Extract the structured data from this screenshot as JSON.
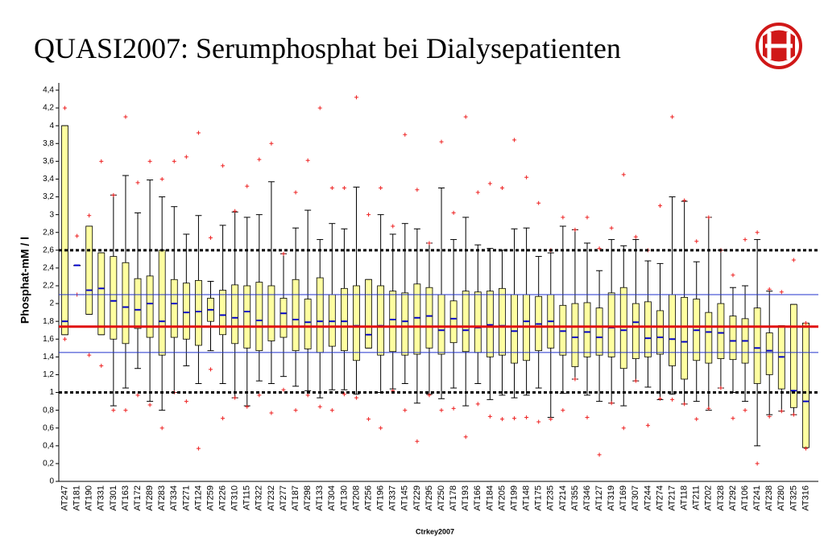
{
  "chart_data": {
    "type": "box",
    "title": "QUASI2007: Serumphosphat bei Dialysepatienten",
    "y_label": "Phosphat-mM / l",
    "x_label": "Ctrkey2007",
    "categories": [
      "AT247",
      "AT181",
      "AT190",
      "AT331",
      "AT301",
      "AT163",
      "AT172",
      "AT289",
      "AT283",
      "AT334",
      "AT271",
      "AT124",
      "AT259",
      "AT226",
      "AT310",
      "AT115",
      "AT322",
      "AT232",
      "AT277",
      "AT187",
      "AT298",
      "AT133",
      "AT304",
      "AT130",
      "AT208",
      "AT256",
      "AT196",
      "AT337",
      "AT145",
      "AT229",
      "AT295",
      "AT250",
      "AT178",
      "AT193",
      "AT166",
      "AT184",
      "AT205",
      "AT199",
      "AT148",
      "AT175",
      "AT235",
      "AT214",
      "AT355",
      "AT346",
      "AT127",
      "AT319",
      "AT169",
      "AT307",
      "AT244",
      "AT274",
      "AT217",
      "AT118",
      "AT211",
      "AT202",
      "AT328",
      "AT292",
      "AT106",
      "AT241",
      "AT238",
      "AT280",
      "AT325",
      "AT316"
    ],
    "whisker_low": [
      1.65,
      2.43,
      1.88,
      1.65,
      0.85,
      1.05,
      1.27,
      0.9,
      0.8,
      1.0,
      1.3,
      1.1,
      1.47,
      1.1,
      0.94,
      0.85,
      1.13,
      1.1,
      1.18,
      1.07,
      1.02,
      0.94,
      1.03,
      1.03,
      0.98,
      1.5,
      1.0,
      1.04,
      1.1,
      0.88,
      0.98,
      0.93,
      1.05,
      0.85,
      1.1,
      0.92,
      0.97,
      0.94,
      0.97,
      1.05,
      0.72,
      0.99,
      1.15,
      0.97,
      0.9,
      0.88,
      0.85,
      1.13,
      1.06,
      0.92,
      0.98,
      0.87,
      0.9,
      0.8,
      1.05,
      1.0,
      0.9,
      0.4,
      0.75,
      0.79,
      0.75,
      0.38
    ],
    "q1": [
      1.65,
      2.43,
      1.88,
      1.65,
      1.6,
      1.55,
      1.72,
      1.62,
      1.42,
      1.62,
      1.6,
      1.53,
      1.8,
      1.65,
      1.55,
      1.5,
      1.47,
      1.58,
      1.62,
      1.47,
      1.49,
      1.45,
      1.52,
      1.47,
      1.36,
      1.5,
      1.42,
      1.46,
      1.42,
      1.43,
      1.5,
      1.43,
      1.56,
      1.46,
      1.45,
      1.4,
      1.42,
      1.33,
      1.36,
      1.47,
      1.5,
      1.42,
      1.29,
      1.4,
      1.42,
      1.4,
      1.27,
      1.38,
      1.4,
      1.43,
      1.3,
      1.15,
      1.36,
      1.33,
      1.38,
      1.37,
      1.33,
      1.1,
      1.2,
      1.04,
      0.83,
      0.38
    ],
    "median": [
      1.8,
      2.43,
      2.15,
      2.17,
      2.03,
      1.96,
      1.93,
      2.0,
      1.8,
      2.0,
      1.9,
      1.91,
      1.93,
      1.87,
      1.84,
      1.91,
      1.81,
      1.74,
      1.89,
      1.82,
      1.79,
      1.8,
      1.8,
      1.8,
      1.75,
      1.65,
      1.75,
      1.82,
      1.8,
      1.84,
      1.86,
      1.7,
      1.83,
      1.7,
      1.73,
      1.76,
      1.75,
      1.69,
      1.8,
      1.77,
      1.8,
      1.69,
      1.62,
      1.68,
      1.62,
      1.73,
      1.7,
      1.79,
      1.61,
      1.62,
      1.6,
      1.57,
      1.7,
      1.68,
      1.67,
      1.58,
      1.58,
      1.5,
      1.47,
      1.4,
      1.02,
      0.9
    ],
    "q3": [
      4.0,
      2.43,
      2.87,
      2.57,
      2.53,
      2.46,
      2.28,
      2.31,
      2.6,
      2.27,
      2.23,
      2.26,
      2.06,
      2.15,
      2.21,
      2.2,
      2.24,
      2.2,
      2.06,
      2.27,
      2.05,
      2.29,
      2.1,
      2.17,
      2.2,
      2.27,
      2.2,
      2.14,
      2.12,
      2.22,
      2.18,
      2.1,
      2.03,
      2.14,
      2.13,
      2.14,
      2.17,
      2.1,
      2.1,
      2.08,
      2.1,
      1.98,
      2.0,
      2.01,
      1.95,
      2.12,
      2.18,
      2.0,
      2.02,
      1.92,
      2.1,
      2.07,
      2.05,
      1.9,
      2.0,
      1.86,
      1.83,
      1.95,
      1.67,
      1.75,
      1.99,
      1.78
    ],
    "whisker_high": [
      4.0,
      2.43,
      2.87,
      2.57,
      3.22,
      3.44,
      3.02,
      3.39,
      3.2,
      3.09,
      2.78,
      2.99,
      2.25,
      2.88,
      3.03,
      2.97,
      3.0,
      3.37,
      2.56,
      2.85,
      3.05,
      2.72,
      2.9,
      2.84,
      3.31,
      2.27,
      3.0,
      2.78,
      2.9,
      2.84,
      2.68,
      3.3,
      2.72,
      2.97,
      2.66,
      2.62,
      2.6,
      2.84,
      2.85,
      2.53,
      2.57,
      2.87,
      2.83,
      2.68,
      2.37,
      2.72,
      2.65,
      2.72,
      2.48,
      2.45,
      3.2,
      3.15,
      2.47,
      2.97,
      2.6,
      2.18,
      2.2,
      2.72,
      2.14,
      1.75,
      1.99,
      1.78
    ],
    "outlier_high": [
      4.2,
      2.76,
      2.99,
      3.6,
      3.22,
      4.1,
      3.36,
      3.6,
      3.4,
      3.6,
      3.65,
      3.92,
      2.74,
      3.55,
      3.04,
      3.32,
      3.62,
      3.8,
      2.56,
      3.25,
      3.61,
      4.2,
      3.3,
      3.3,
      4.32,
      3.0,
      3.3,
      2.87,
      3.9,
      3.28,
      2.68,
      3.82,
      3.02,
      4.1,
      3.25,
      3.35,
      3.3,
      3.84,
      3.42,
      3.13,
      2.6,
      2.97,
      2.83,
      2.97,
      2.62,
      2.85,
      3.45,
      2.75,
      2.6,
      3.1,
      4.1,
      3.16,
      2.7,
      2.97,
      2.6,
      2.32,
      2.72,
      2.8,
      2.16,
      2.13,
      2.49,
      1.78
    ],
    "outlier_low": [
      1.6,
      2.1,
      1.42,
      1.3,
      0.8,
      0.8,
      0.97,
      0.86,
      0.6,
      1.0,
      0.9,
      0.37,
      1.26,
      0.71,
      0.94,
      0.84,
      0.97,
      0.77,
      1.03,
      0.8,
      0.97,
      0.84,
      0.8,
      0.98,
      0.94,
      0.7,
      0.6,
      1.02,
      0.8,
      0.45,
      0.97,
      0.8,
      0.82,
      0.5,
      0.87,
      0.73,
      0.7,
      0.71,
      0.72,
      0.67,
      0.7,
      0.8,
      1.15,
      0.72,
      0.3,
      0.88,
      0.6,
      1.13,
      0.63,
      0.93,
      0.92,
      0.87,
      0.7,
      0.82,
      1.05,
      0.71,
      0.8,
      0.2,
      0.73,
      0.79,
      0.75,
      0.37
    ],
    "box_color": "#ffffa0",
    "median_color": "#0000cc",
    "outlier_color": "#ee2222",
    "reference_lines": [
      {
        "value": 2.6,
        "color": "#000000",
        "style": "dashed"
      },
      {
        "value": 1.0,
        "color": "#000000",
        "style": "dashed"
      },
      {
        "value": 2.1,
        "color": "#2233cc",
        "style": "solid"
      },
      {
        "value": 1.45,
        "color": "#2233cc",
        "style": "solid"
      },
      {
        "value": 1.74,
        "color": "#e01010",
        "style": "solid"
      }
    ],
    "ylim": [
      0,
      4.4
    ],
    "yticks": [
      0,
      {
        "value": 0.2,
        "label": "0,2"
      },
      {
        "value": 0.4,
        "label": "0,4"
      },
      {
        "value": 0.6,
        "label": "0,6"
      },
      {
        "value": 0.8,
        "label": "0,8"
      },
      1,
      {
        "value": 1.2,
        "label": "1,2"
      },
      {
        "value": 1.4,
        "label": "1,4"
      },
      {
        "value": 1.6,
        "label": "1,6"
      },
      {
        "value": 1.8,
        "label": "1,8"
      },
      2,
      {
        "value": 2.2,
        "label": "2,2"
      },
      {
        "value": 2.4,
        "label": "2,4"
      },
      {
        "value": 2.6,
        "label": "2,6"
      },
      {
        "value": 2.8,
        "label": "2,8"
      },
      3,
      {
        "value": 3.2,
        "label": "3,2"
      },
      {
        "value": 3.4,
        "label": "3,4"
      },
      {
        "value": 3.6,
        "label": "3,6"
      },
      {
        "value": 3.8,
        "label": "3,8"
      },
      4,
      {
        "value": 4.2,
        "label": "4,2"
      },
      {
        "value": 4.4,
        "label": "4,4"
      }
    ]
  }
}
